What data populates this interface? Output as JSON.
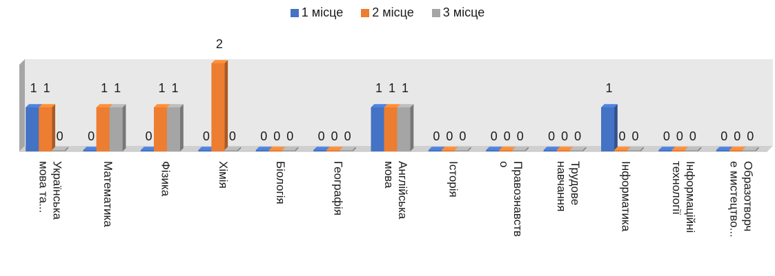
{
  "chart_data": {
    "type": "bar",
    "categories": [
      [
        "Українська",
        "мова та..."
      ],
      [
        "Математика"
      ],
      [
        "Фізика"
      ],
      [
        "Хімія"
      ],
      [
        "Біологія"
      ],
      [
        "Географія"
      ],
      [
        "Англійська",
        "мова"
      ],
      [
        "Історія"
      ],
      [
        "Правознавств",
        "о"
      ],
      [
        "Трудове",
        "навчання"
      ],
      [
        "Інформатика"
      ],
      [
        "Інформаційні",
        "технології"
      ],
      [
        "Образотворч",
        "е мистецтво..."
      ]
    ],
    "series": [
      {
        "name": "1 місце",
        "color": "#4472C4",
        "values": [
          1,
          0,
          0,
          0,
          0,
          0,
          1,
          0,
          0,
          0,
          1,
          0,
          0
        ]
      },
      {
        "name": "2 місце",
        "color": "#ED7D31",
        "values": [
          1,
          1,
          1,
          2,
          0,
          0,
          1,
          0,
          0,
          0,
          0,
          0,
          0
        ]
      },
      {
        "name": "3 місце",
        "color": "#A5A5A5",
        "values": [
          0,
          1,
          1,
          0,
          0,
          0,
          1,
          0,
          0,
          0,
          0,
          0,
          0
        ]
      }
    ],
    "data_labels": [
      [
        "1",
        "1",
        "0"
      ],
      [
        "0",
        "1",
        "1"
      ],
      [
        "0",
        "1",
        "1"
      ],
      [
        "0",
        "2",
        "0"
      ],
      [
        "0",
        "0",
        "0"
      ],
      [
        "0",
        "0",
        "0"
      ],
      [
        "1",
        "1",
        "1"
      ],
      [
        "0",
        "0",
        "0"
      ],
      [
        "0",
        "0",
        "0"
      ],
      [
        "0",
        "0",
        "0"
      ],
      [
        "1",
        "0",
        "0"
      ],
      [
        "0",
        "0",
        "0"
      ],
      [
        "0",
        "0",
        "0"
      ]
    ],
    "ylim": [
      0,
      2
    ],
    "legend_position": "top",
    "grid": false,
    "style": "3d-column"
  }
}
